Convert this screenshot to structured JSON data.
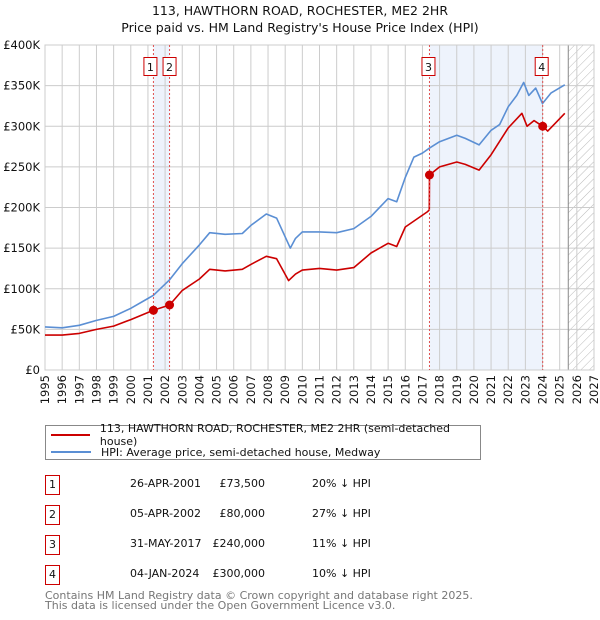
{
  "chart_data": {
    "type": "line",
    "title": "113, HAWTHORN ROAD, ROCHESTER, ME2 2HR",
    "subtitle": "Price paid vs. HM Land Registry's House Price Index (HPI)",
    "xlim": [
      1995,
      2027
    ],
    "ylim": [
      0,
      400000
    ],
    "x_ticks": [
      "1995",
      "1996",
      "1997",
      "1998",
      "1999",
      "2000",
      "2001",
      "2002",
      "2003",
      "2004",
      "2005",
      "2006",
      "2007",
      "2008",
      "2009",
      "2010",
      "2011",
      "2012",
      "2013",
      "2014",
      "2015",
      "2016",
      "2017",
      "2018",
      "2019",
      "2020",
      "2021",
      "2022",
      "2023",
      "2024",
      "2025",
      "2026",
      "2027"
    ],
    "y_ticks": [
      {
        "value": 0,
        "label": "£0"
      },
      {
        "value": 50000,
        "label": "£50K"
      },
      {
        "value": 100000,
        "label": "£100K"
      },
      {
        "value": 150000,
        "label": "£150K"
      },
      {
        "value": 200000,
        "label": "£200K"
      },
      {
        "value": 250000,
        "label": "£250K"
      },
      {
        "value": 300000,
        "label": "£300K"
      },
      {
        "value": 350000,
        "label": "£350K"
      },
      {
        "value": 400000,
        "label": "£400K"
      }
    ],
    "grid": true,
    "forecast_hatch_from": 2025.5,
    "series": [
      {
        "name": "113, HAWTHORN ROAD, ROCHESTER, ME2 2HR (semi-detached house)",
        "color": "#cc0000",
        "x": [
          1995,
          1996,
          1997,
          1998,
          1999,
          2000,
          2001.32,
          2002.26,
          2003,
          2004,
          2004.6,
          2005.5,
          2006.5,
          2007,
          2007.9,
          2008.5,
          2009.2,
          2009.6,
          2010,
          2011,
          2012,
          2013,
          2014,
          2015,
          2015.5,
          2016,
          2017.3,
          2017.4,
          2017.41,
          2018,
          2019,
          2019.5,
          2020.3,
          2021,
          2022,
          2022.8,
          2023.1,
          2023.5,
          2024.01,
          2024.3,
          2024.8,
          2025.3
        ],
        "y": [
          43000,
          43000,
          45000,
          50000,
          54000,
          62000,
          73500,
          80000,
          98000,
          112000,
          124000,
          122000,
          124000,
          130000,
          140000,
          137000,
          110000,
          118000,
          123000,
          125000,
          123000,
          126000,
          144000,
          156000,
          152000,
          176000,
          195000,
          197000,
          240000,
          250000,
          256000,
          253000,
          246000,
          265000,
          298000,
          316000,
          300000,
          307000,
          300000,
          294000,
          305000,
          316000
        ]
      },
      {
        "name": "HPI: Average price, semi-detached house, Medway",
        "color": "#5b8fd4",
        "x": [
          1995,
          1996,
          1997,
          1998,
          1999,
          2000,
          2001,
          2001.32,
          2002.26,
          2003,
          2004,
          2004.6,
          2005.5,
          2006.5,
          2007,
          2007.9,
          2008.5,
          2009.3,
          2009.6,
          2010,
          2011,
          2012,
          2013,
          2014,
          2015,
          2015.5,
          2016,
          2016.5,
          2017,
          2017.4,
          2018,
          2019,
          2019.5,
          2020.3,
          2021,
          2021.5,
          2022,
          2022.5,
          2022.9,
          2023.2,
          2023.6,
          2024,
          2024.5,
          2025.3
        ],
        "y": [
          53000,
          52000,
          55000,
          61000,
          66000,
          76000,
          88000,
          92000,
          111000,
          131000,
          154000,
          169000,
          167000,
          168000,
          178000,
          192000,
          187000,
          150000,
          162000,
          170000,
          170000,
          169000,
          174000,
          189000,
          211000,
          207000,
          237000,
          262000,
          267000,
          273000,
          281000,
          289000,
          285000,
          277000,
          295000,
          302000,
          324000,
          338000,
          354000,
          338000,
          347000,
          328000,
          341000,
          351000
        ]
      }
    ],
    "sales": [
      {
        "label": "1",
        "date": "26-APR-2001",
        "x": 2001.32,
        "price": 73500,
        "price_text": "£73,500",
        "hpi_text": "20% ↓ HPI"
      },
      {
        "label": "2",
        "date": "05-APR-2002",
        "x": 2002.26,
        "price": 80000,
        "price_text": "£80,000",
        "hpi_text": "27% ↓ HPI"
      },
      {
        "label": "3",
        "date": "31-MAY-2017",
        "x": 2017.41,
        "price": 240000,
        "price_text": "£240,000",
        "hpi_text": "11% ↓ HPI"
      },
      {
        "label": "4",
        "date": "04-JAN-2024",
        "x": 2024.01,
        "price": 300000,
        "price_text": "£300,000",
        "hpi_text": "10% ↓ HPI"
      }
    ],
    "shaded_ranges": [
      [
        2001.32,
        2002.26
      ],
      [
        2017.41,
        2024.01
      ]
    ]
  },
  "legend": {
    "property": "113, HAWTHORN ROAD, ROCHESTER, ME2 2HR (semi-detached house)",
    "hpi": "HPI: Average price, semi-detached house, Medway"
  },
  "footer": {
    "line1": "Contains HM Land Registry data © Crown copyright and database right 2025.",
    "line2": "This data is licensed under the Open Government Licence v3.0."
  },
  "colors": {
    "property": "#cc0000",
    "hpi": "#5b8fd4",
    "shade": "#eef3fc",
    "grid": "#cccccc"
  }
}
